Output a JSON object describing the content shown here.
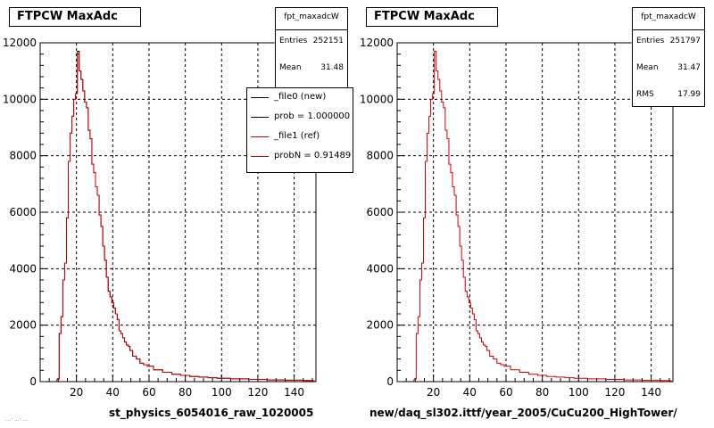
{
  "colors": {
    "data_new": "#000000",
    "data_ref": "#cc0000",
    "grid": "#000000"
  },
  "panels": [
    {
      "title": "FTPCW MaxAdc",
      "stats": {
        "name": "fpt_maxadcW",
        "entries_label": "Entries",
        "entries": "252151",
        "mean_label": "Mean",
        "mean": "31.48"
      },
      "legend": [
        {
          "label": "_file0 (new)",
          "color": "#000000"
        },
        {
          "label": "prob = 1.000000",
          "color": "#000000"
        },
        {
          "label": "_file1 (ref)",
          "color": "#cc0000"
        },
        {
          "label": "probN = 0.91489",
          "color": "#cc0000"
        }
      ],
      "xlabel": "st_physics_6054016_raw_1020005"
    },
    {
      "title": "FTPCW MaxAdc",
      "stats": {
        "name": "fpt_maxadcW",
        "entries_label": "Entries",
        "entries": "251797",
        "mean_label": "Mean",
        "mean": "31.47",
        "rms_label": "RMS",
        "rms": "17.99"
      },
      "xlabel": "new/daq_sl302.ittf/year_2005/CuCu200_HighTower/"
    }
  ],
  "footer_fragment": "...-...-...",
  "chart_data": [
    {
      "type": "line",
      "title": "FTPCW MaxAdc",
      "xlabel": "st_physics_6054016_raw_1020005",
      "ylabel": "",
      "xlim": [
        0,
        152
      ],
      "ylim": [
        0,
        12000
      ],
      "xticks": [
        20,
        40,
        60,
        80,
        100,
        120,
        140
      ],
      "yticks": [
        0,
        2000,
        4000,
        6000,
        8000,
        10000,
        12000
      ],
      "grid": true,
      "legend_position": "top-right",
      "x": [
        10,
        11,
        12,
        13,
        14,
        15,
        16,
        17,
        18,
        19,
        20,
        21,
        22,
        23,
        24,
        25,
        26,
        27,
        28,
        29,
        30,
        31,
        32,
        33,
        34,
        35,
        36,
        37,
        38,
        39,
        40,
        41,
        42,
        43,
        44,
        45,
        46,
        47,
        48,
        49,
        50,
        52,
        54,
        56,
        58,
        60,
        65,
        70,
        75,
        80,
        85,
        90,
        95,
        100,
        110,
        120,
        130,
        140,
        150
      ],
      "series": [
        {
          "name": "_file0 (new)",
          "values": [
            100,
            1700,
            2300,
            3600,
            4200,
            5800,
            7800,
            8800,
            9400,
            10000,
            10200,
            11700,
            11000,
            10700,
            10300,
            9900,
            9700,
            8900,
            8600,
            7700,
            7400,
            6900,
            6600,
            5900,
            5500,
            4800,
            4300,
            3700,
            3200,
            3000,
            2800,
            2600,
            2400,
            2200,
            1800,
            1700,
            1550,
            1400,
            1300,
            1250,
            1100,
            900,
            800,
            650,
            600,
            550,
            420,
            330,
            260,
            220,
            180,
            160,
            140,
            120,
            100,
            80,
            60,
            50,
            40
          ]
        },
        {
          "name": "_file1 (ref)",
          "values": [
            100,
            1700,
            2300,
            3600,
            4200,
            5800,
            7800,
            8800,
            9400,
            10000,
            10200,
            11600,
            11000,
            10700,
            10300,
            9900,
            9700,
            8900,
            8600,
            7700,
            7400,
            6900,
            6600,
            5900,
            5500,
            4800,
            4300,
            3700,
            3200,
            3000,
            2800,
            2600,
            2400,
            2200,
            1800,
            1700,
            1550,
            1400,
            1300,
            1250,
            1100,
            900,
            800,
            650,
            600,
            550,
            420,
            330,
            260,
            220,
            180,
            160,
            140,
            120,
            100,
            80,
            60,
            50,
            40
          ]
        }
      ]
    },
    {
      "type": "line",
      "title": "FTPCW MaxAdc",
      "xlabel": "new/daq_sl302.ittf/year_2005/CuCu200_HighTower/",
      "ylabel": "",
      "xlim": [
        0,
        152
      ],
      "ylim": [
        0,
        12000
      ],
      "xticks": [
        20,
        40,
        60,
        80,
        100,
        120,
        140
      ],
      "yticks": [
        0,
        2000,
        4000,
        6000,
        8000,
        10000,
        12000
      ],
      "grid": true,
      "x": [
        10,
        11,
        12,
        13,
        14,
        15,
        16,
        17,
        18,
        19,
        20,
        21,
        22,
        23,
        24,
        25,
        26,
        27,
        28,
        29,
        30,
        31,
        32,
        33,
        34,
        35,
        36,
        37,
        38,
        39,
        40,
        41,
        42,
        43,
        44,
        45,
        46,
        47,
        48,
        49,
        50,
        52,
        54,
        56,
        58,
        60,
        65,
        70,
        75,
        80,
        85,
        90,
        95,
        100,
        110,
        120,
        130,
        140,
        150
      ],
      "series": [
        {
          "values": [
            100,
            1700,
            2300,
            3600,
            4200,
            5800,
            7800,
            8800,
            9400,
            10000,
            10200,
            11700,
            11000,
            10700,
            10300,
            9900,
            9700,
            8900,
            8600,
            7700,
            7400,
            6900,
            6600,
            5900,
            5500,
            4800,
            4300,
            3700,
            3200,
            3000,
            2800,
            2600,
            2400,
            2200,
            1800,
            1700,
            1550,
            1400,
            1300,
            1250,
            1100,
            900,
            800,
            650,
            600,
            550,
            420,
            330,
            260,
            220,
            180,
            160,
            140,
            120,
            100,
            80,
            60,
            50,
            40
          ]
        }
      ]
    }
  ]
}
